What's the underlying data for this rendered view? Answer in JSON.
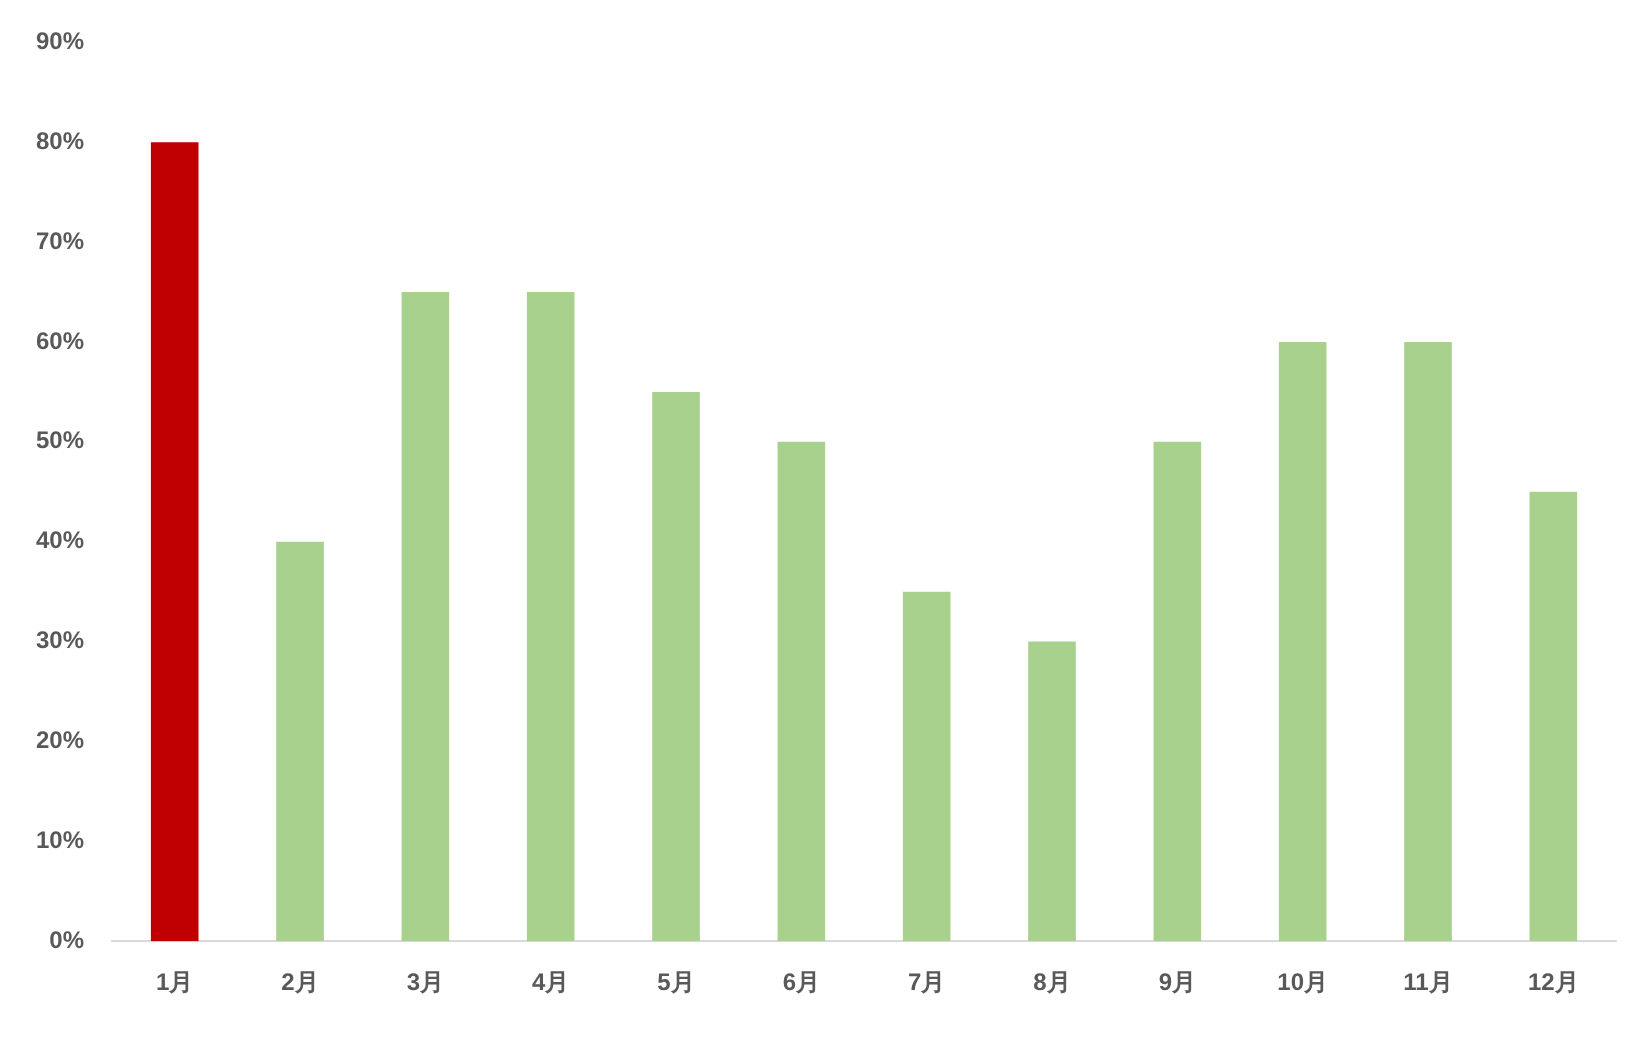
{
  "chart_data": {
    "type": "bar",
    "categories": [
      "1月",
      "2月",
      "3月",
      "4月",
      "5月",
      "6月",
      "7月",
      "8月",
      "9月",
      "10月",
      "11月",
      "12月"
    ],
    "values": [
      80,
      40,
      65,
      65,
      55,
      50,
      35,
      30,
      50,
      60,
      60,
      45
    ],
    "colors": [
      "#c00000",
      "#a9d18e",
      "#a9d18e",
      "#a9d18e",
      "#a9d18e",
      "#a9d18e",
      "#a9d18e",
      "#a9d18e",
      "#a9d18e",
      "#a9d18e",
      "#a9d18e",
      "#a9d18e"
    ],
    "ylim": [
      0,
      90
    ],
    "yticks": [
      {
        "value": 0,
        "label": "0%"
      },
      {
        "value": 10,
        "label": "10%"
      },
      {
        "value": 20,
        "label": "20%"
      },
      {
        "value": 30,
        "label": "30%"
      },
      {
        "value": 40,
        "label": "40%"
      },
      {
        "value": 50,
        "label": "50%"
      },
      {
        "value": 60,
        "label": "60%"
      },
      {
        "value": 70,
        "label": "70%"
      },
      {
        "value": 80,
        "label": "80%"
      },
      {
        "value": 90,
        "label": "90%"
      }
    ],
    "grid": false,
    "legend": false
  }
}
